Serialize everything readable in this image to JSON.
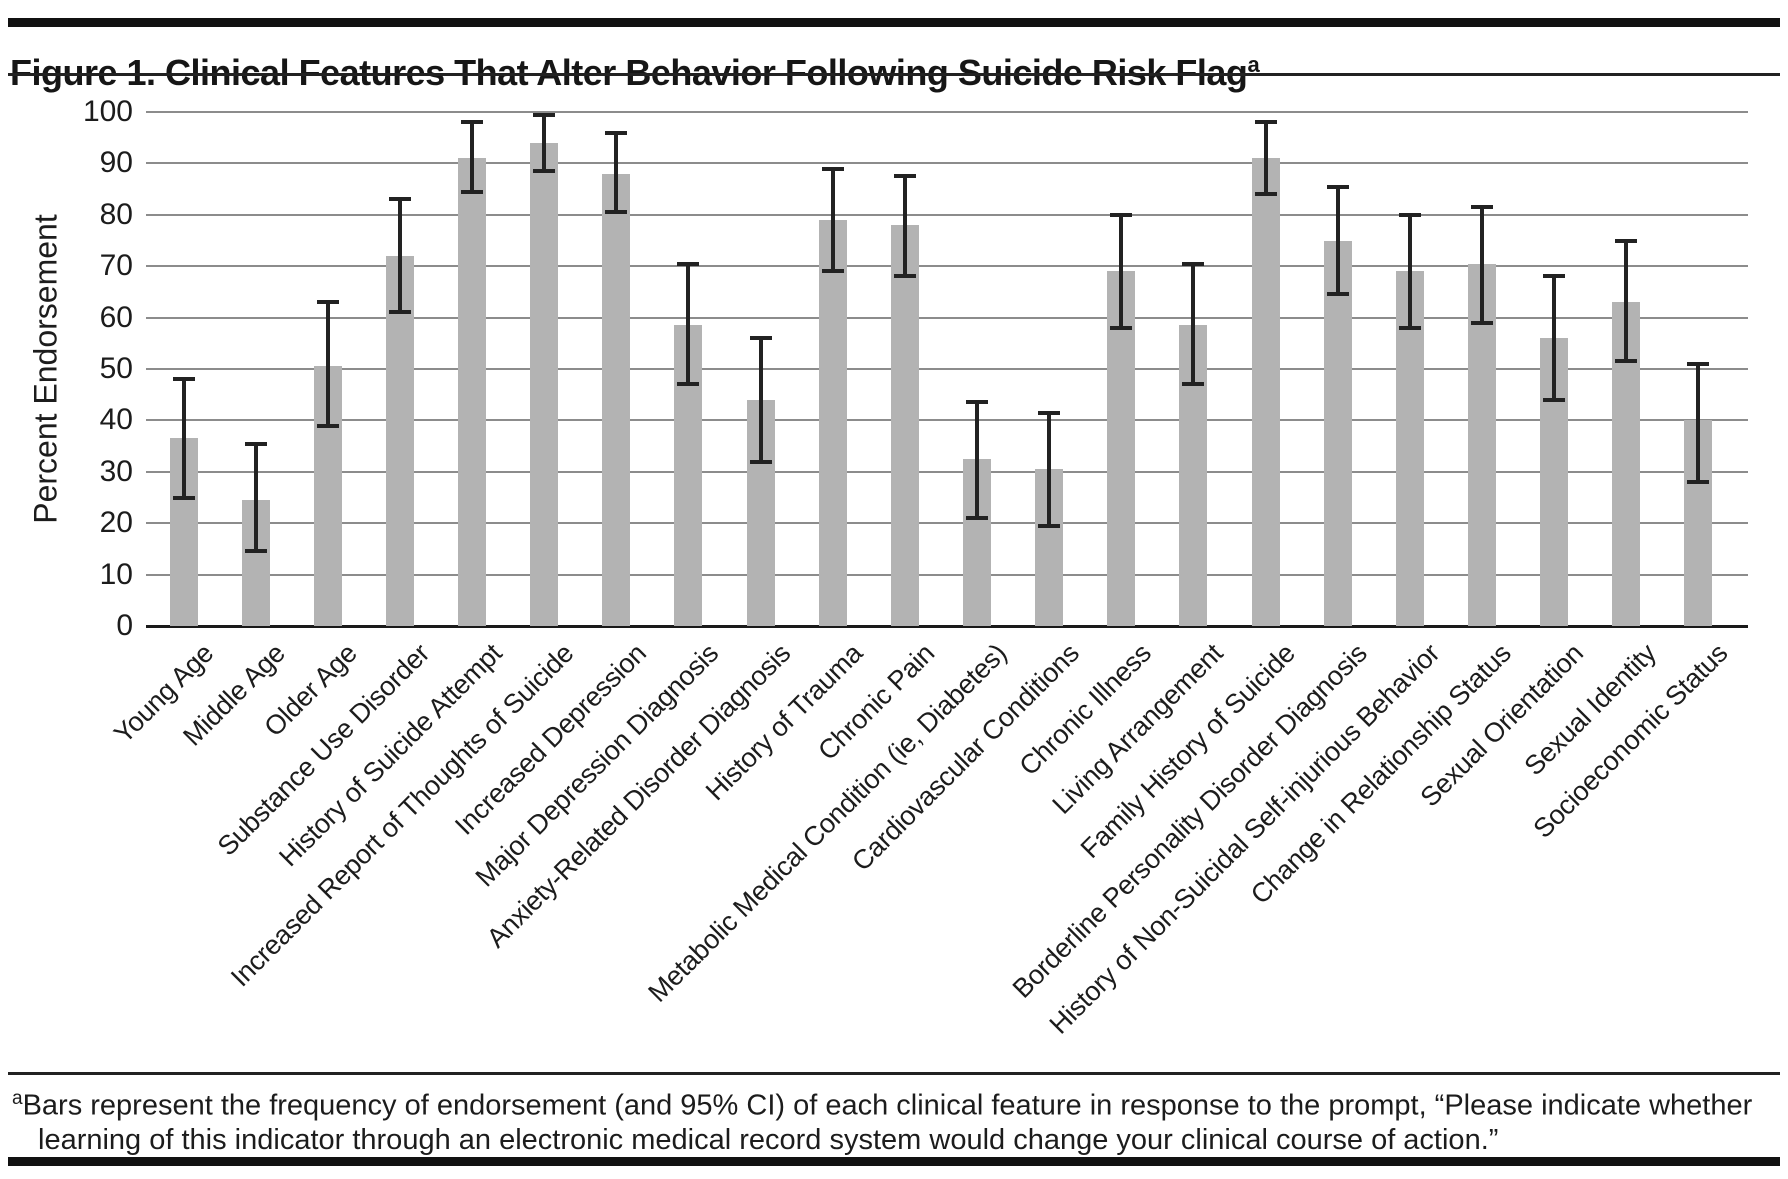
{
  "figure": {
    "title": "Figure 1. Clinical Features That Alter Behavior Following Suicide Risk Flag",
    "title_superscript": "a",
    "footnote_marker": "a",
    "footnote": "Bars represent the frequency of endorsement (and 95% CI) of each clinical feature in response to the prompt, “Please indicate whether learning of this indicator through an electronic medical record system would change your clinical course of action.”"
  },
  "chart_data": {
    "type": "bar",
    "title": "Figure 1. Clinical Features That Alter Behavior Following Suicide Risk Flag",
    "xlabel": "",
    "ylabel": "Percent Endorsement",
    "ylim": [
      0,
      100
    ],
    "yticks": [
      0,
      10,
      20,
      30,
      40,
      50,
      60,
      70,
      80,
      90,
      100
    ],
    "grid": true,
    "legend": "none",
    "error_bars": "95% CI",
    "bar_color": "#b3b3b3",
    "error_bar_color": "#222222",
    "categories": [
      "Young Age",
      "Middle Age",
      "Older Age",
      "Substance Use Disorder",
      "History of Suicide Attempt",
      "Increased Report of Thoughts of Suicide",
      "Increased Depression",
      "Major Depression Diagnosis",
      "Anxiety-Related Disorder Diagnosis",
      "History of Trauma",
      "Chronic Pain",
      "Metabolic Medical Condition (ie, Diabetes)",
      "Cardiovascular Conditions",
      "Chronic Illness",
      "Living Arrangement",
      "Family History of Suicide",
      "Borderline Personality Disorder Diagnosis",
      "History of Non-Suicidal Self-injurious Behavior",
      "Change in Relationship Status",
      "Sexual Orientation",
      "Sexual Identity",
      "Socioeconomic Status"
    ],
    "values": [
      36.5,
      24.5,
      50.5,
      72,
      91,
      94,
      88,
      58.5,
      44,
      79,
      78,
      32.5,
      30.5,
      69,
      58.5,
      91,
      75,
      69,
      70.5,
      56,
      63,
      40
    ],
    "ci_low": [
      25,
      14.5,
      39,
      61,
      84.5,
      88.5,
      80.5,
      47,
      32,
      69,
      68,
      21,
      19.5,
      58,
      47,
      84,
      64.5,
      58,
      59,
      44,
      51.5,
      28
    ],
    "ci_high": [
      48,
      35.5,
      63,
      83,
      98,
      99.5,
      96,
      70.5,
      56,
      89,
      87.5,
      43.5,
      41.5,
      80,
      70.5,
      98,
      85.5,
      80,
      81.5,
      68,
      75,
      51
    ]
  }
}
